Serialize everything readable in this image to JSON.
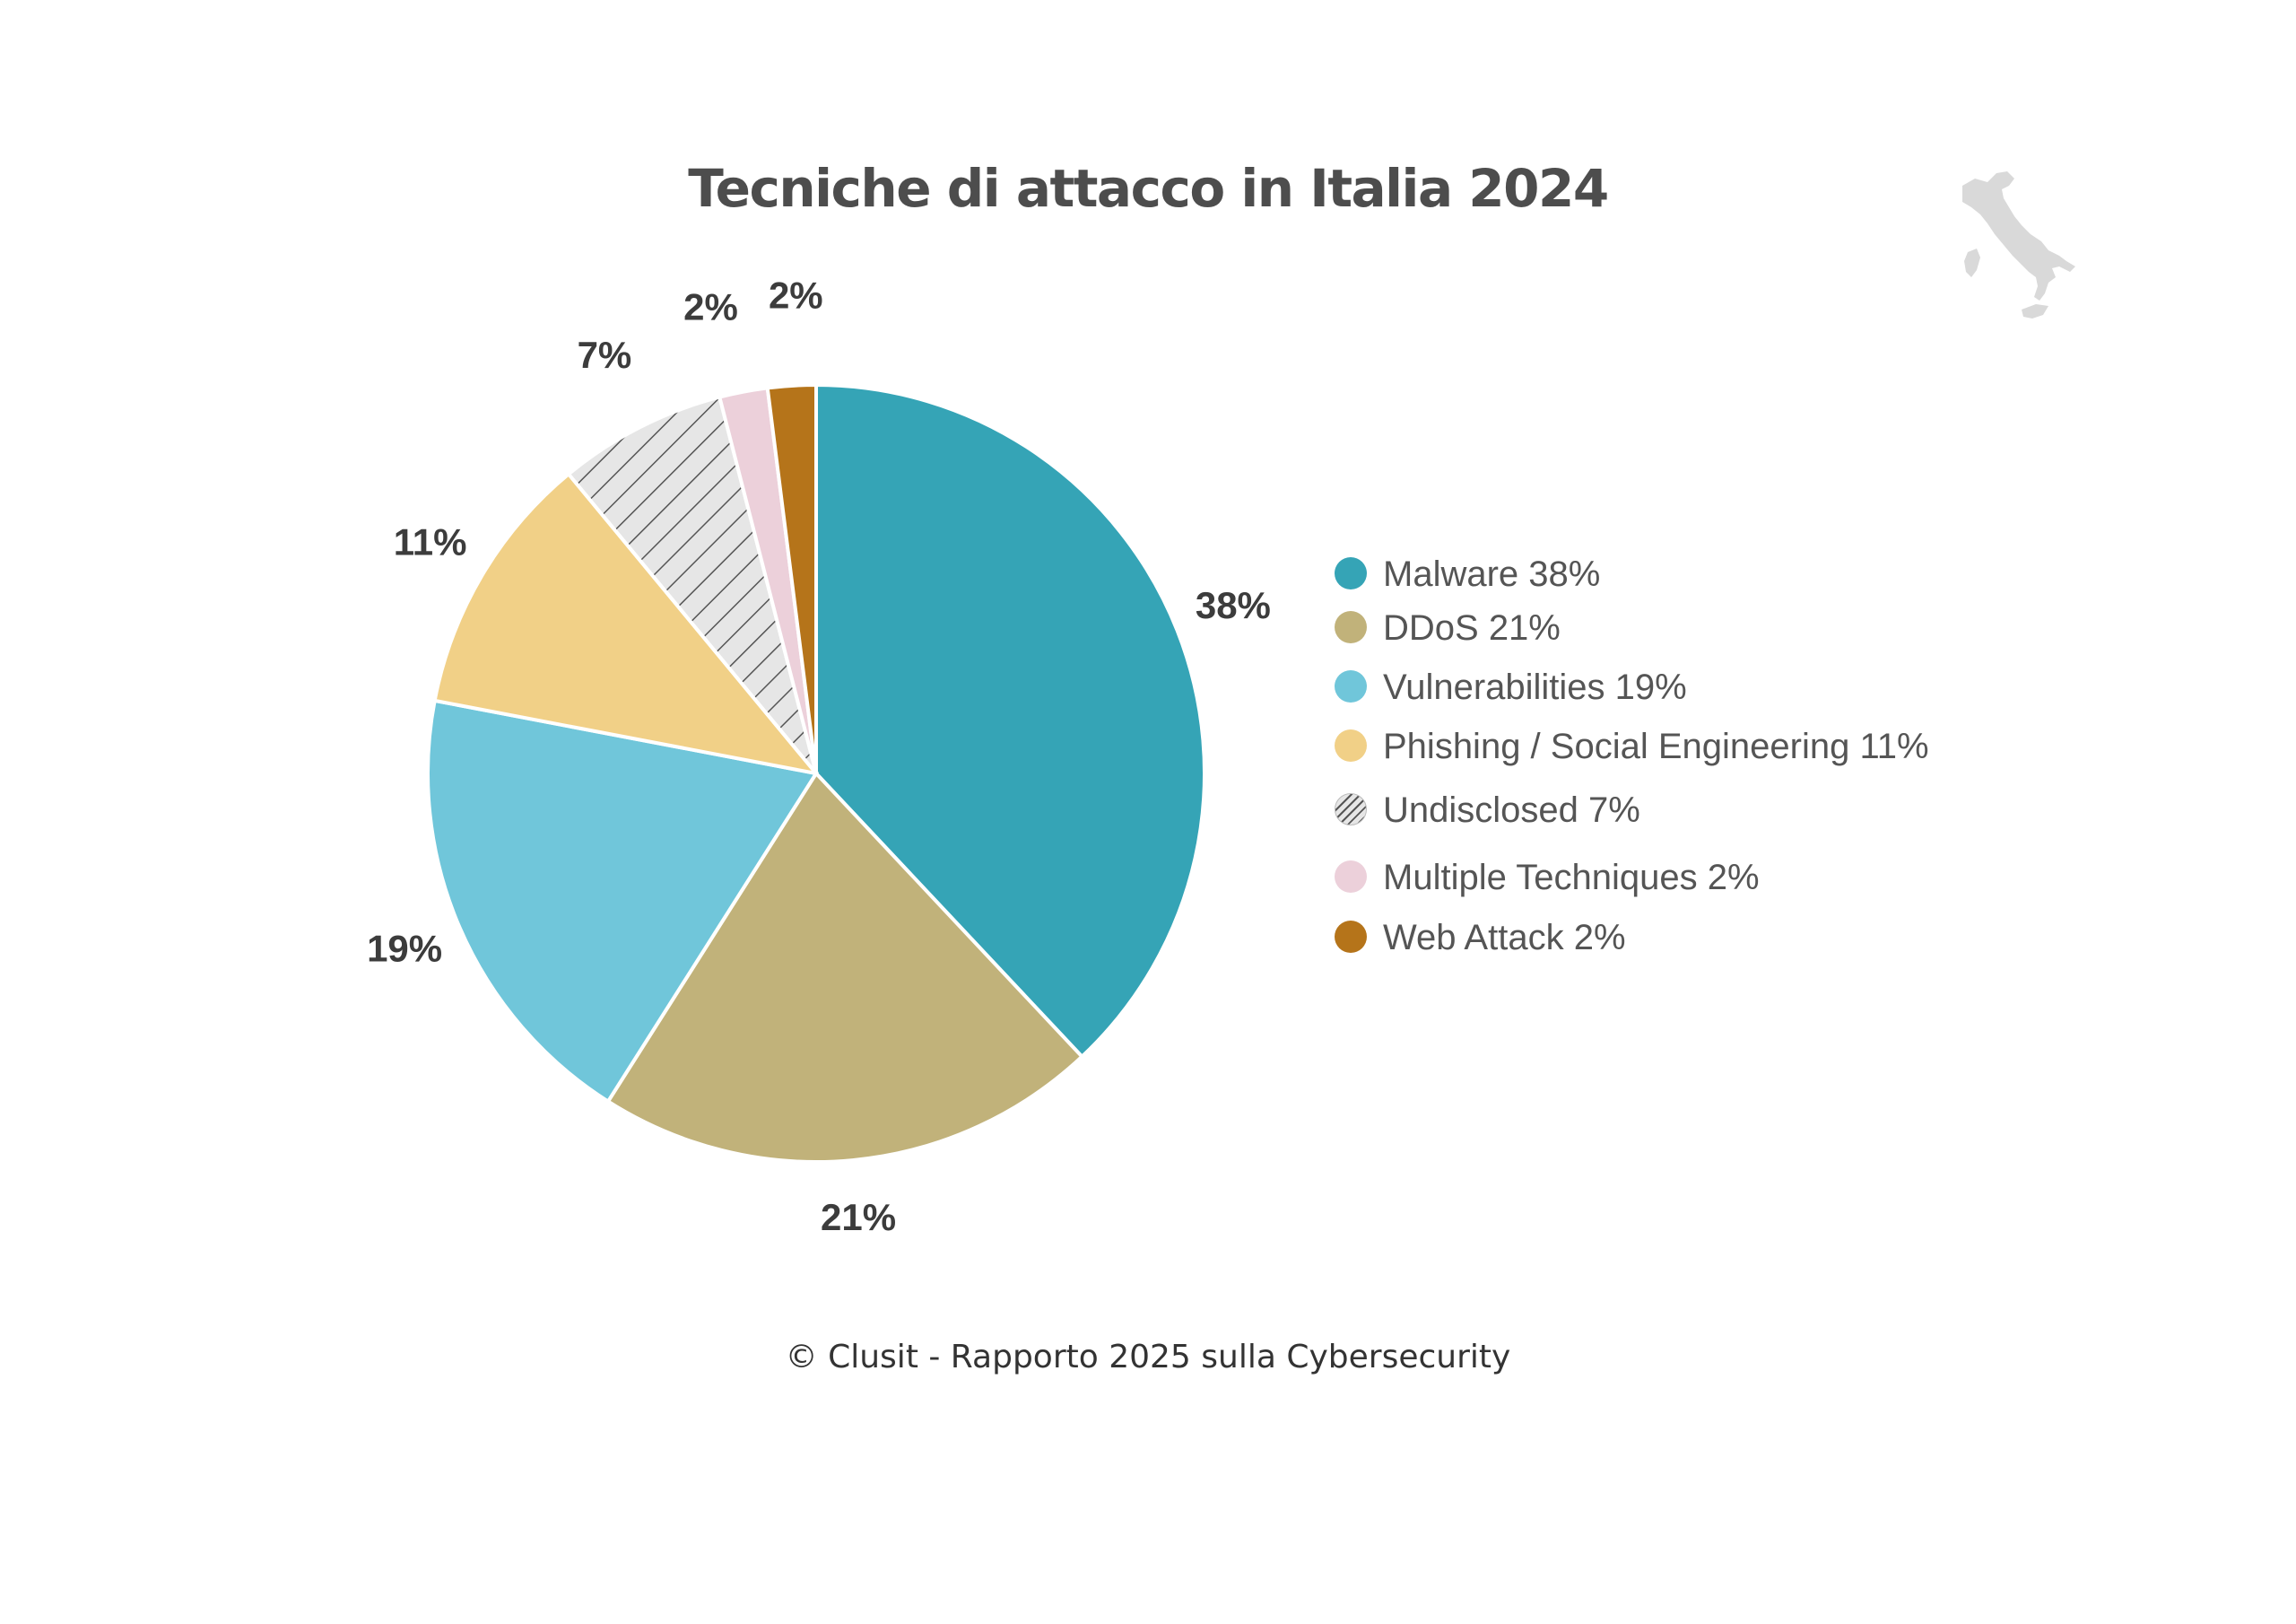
{
  "title": "Tecniche di attacco in Italia 2024",
  "footer": "© Clusit - Rapporto 2025 sulla Cybersecurity",
  "map_icon": "italy-map-icon",
  "chart_data": {
    "type": "pie",
    "title": "Tecniche di attacco in Italia 2024",
    "legend_position": "right",
    "slices": [
      {
        "label": "Malware",
        "value": 38,
        "display": "38%",
        "legend": "Malware 38%",
        "color": "#35a4b6",
        "pattern": "solid"
      },
      {
        "label": "DDoS",
        "value": 21,
        "display": "21%",
        "legend": "DDoS 21%",
        "color": "#c1b27a",
        "pattern": "solid"
      },
      {
        "label": "Vulnerabilities",
        "value": 19,
        "display": "19%",
        "legend": "Vulnerabilities 19%",
        "color": "#70c6da",
        "pattern": "solid"
      },
      {
        "label": "Phishing / Social Engineering",
        "value": 11,
        "display": "11%",
        "legend": "Phishing / Social Engineering 11%",
        "color": "#f1d087",
        "pattern": "solid"
      },
      {
        "label": "Undisclosed",
        "value": 7,
        "display": "7%",
        "legend": "Undisclosed 7%",
        "color": "#e6e6e6",
        "pattern": "hatched"
      },
      {
        "label": "Multiple Techniques",
        "value": 2,
        "display": "2%",
        "legend": "Multiple Techniques 2%",
        "color": "#ecd0da",
        "pattern": "solid"
      },
      {
        "label": "Web Attack",
        "value": 2,
        "display": "2%",
        "legend": "Web Attack 2%",
        "color": "#b5741a",
        "pattern": "solid"
      }
    ]
  }
}
